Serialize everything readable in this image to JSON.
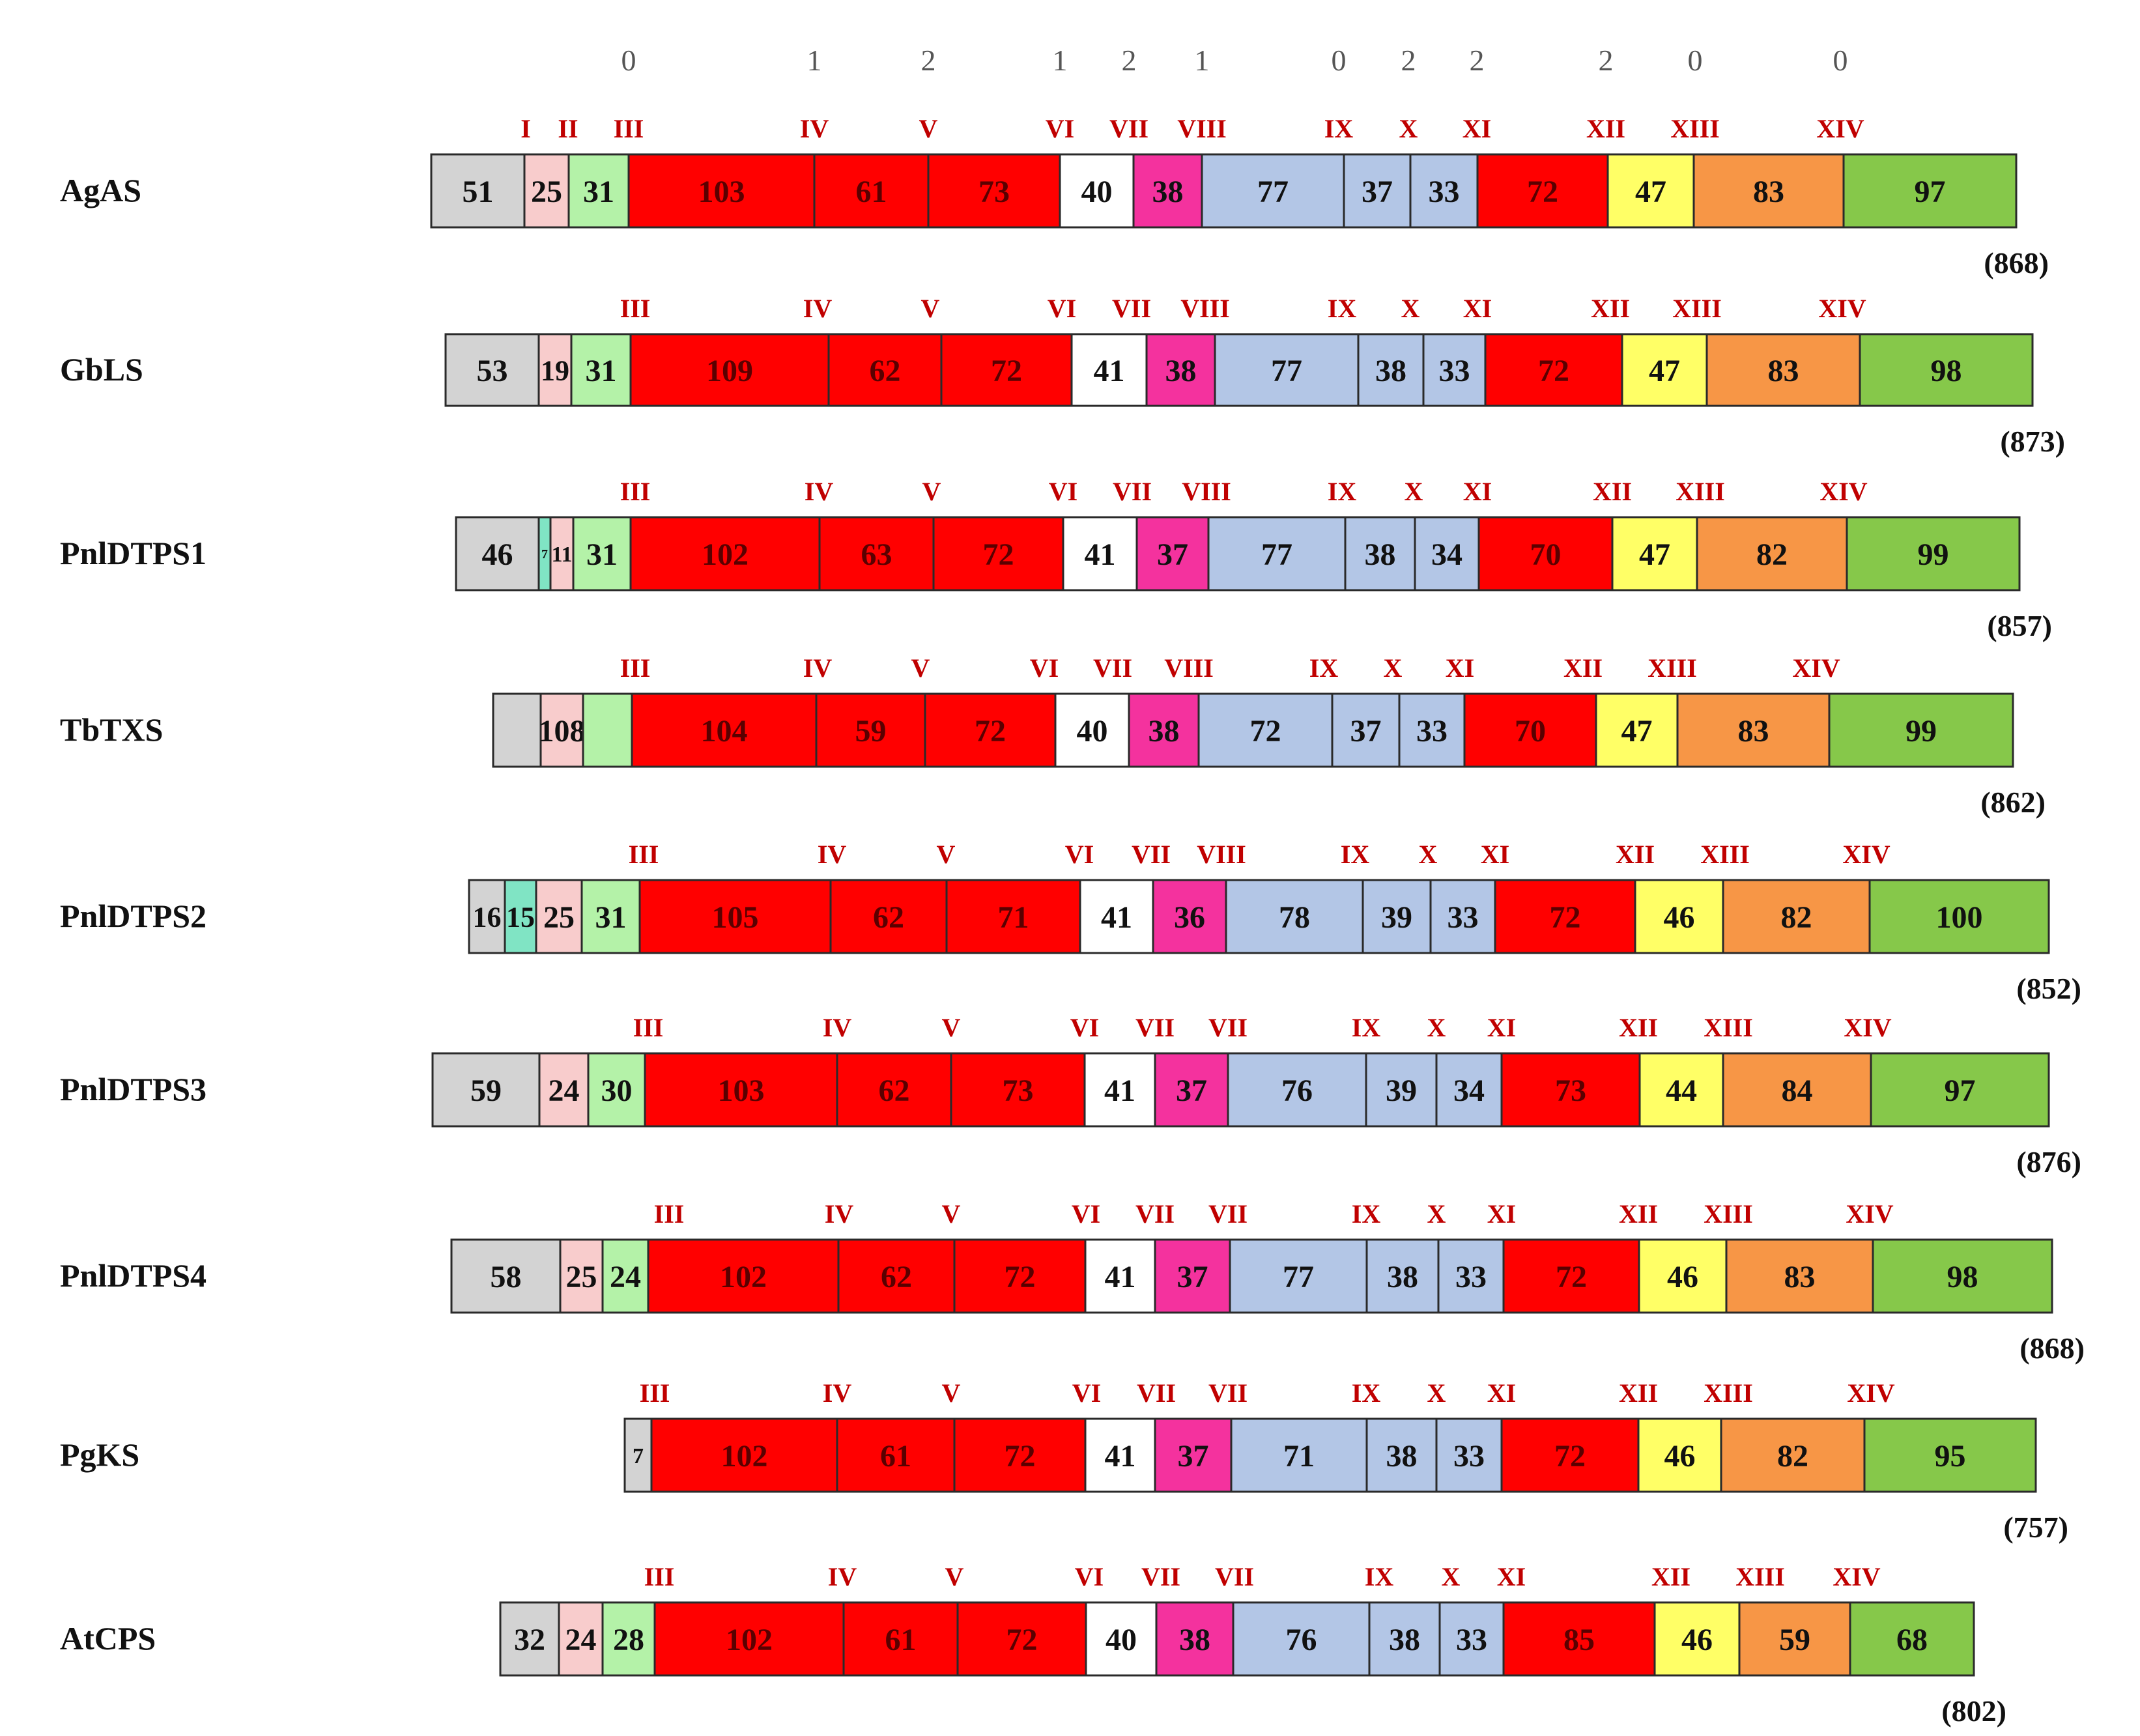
{
  "phase_numbers": [
    "0",
    "1",
    "2",
    "1",
    "2",
    "1",
    "0",
    "2",
    "2",
    "2",
    "0",
    "0"
  ],
  "colors": {
    "grey": "#d3d3d3",
    "pink": "#f8cccc",
    "lightgreen": "#b4f2a8",
    "teal": "#80e4c4",
    "red": "#ff0000",
    "white": "#ffffff",
    "magenta": "#f4329e",
    "blue": "#b3c6e6",
    "yellow": "#ffff66",
    "orange": "#f79646",
    "green": "#86c84a",
    "roman": "#c00000",
    "text": "#111111",
    "phase": "#555555"
  },
  "proteins": [
    {
      "name": "AgAS",
      "total": "(868)",
      "labels": [
        "I",
        "II",
        "III",
        "IV",
        "V",
        "VI",
        "VII",
        "VIII",
        "IX",
        "X",
        "XI",
        "XII",
        "XIII",
        "XIV"
      ],
      "segments": [
        {
          "v": "51",
          "c": "grey"
        },
        {
          "v": "25",
          "c": "pink"
        },
        {
          "v": "31",
          "c": "lightgreen"
        },
        {
          "v": "103",
          "c": "red"
        },
        {
          "v": "61",
          "c": "red"
        },
        {
          "v": "73",
          "c": "red"
        },
        {
          "v": "40",
          "c": "white"
        },
        {
          "v": "38",
          "c": "magenta"
        },
        {
          "v": "77",
          "c": "blue"
        },
        {
          "v": "37",
          "c": "blue"
        },
        {
          "v": "33",
          "c": "blue"
        },
        {
          "v": "72",
          "c": "red"
        },
        {
          "v": "47",
          "c": "yellow"
        },
        {
          "v": "83",
          "c": "orange"
        },
        {
          "v": "97",
          "c": "green"
        }
      ]
    },
    {
      "name": "GbLS",
      "total": "(873)",
      "labels": [
        "III",
        "IV",
        "V",
        "VI",
        "VII",
        "VIII",
        "IX",
        "X",
        "XI",
        "XII",
        "XIII",
        "XIV"
      ],
      "segments": [
        {
          "v": "53",
          "c": "grey"
        },
        {
          "v": "19",
          "c": "pink"
        },
        {
          "v": "31",
          "c": "lightgreen"
        },
        {
          "v": "109",
          "c": "red"
        },
        {
          "v": "62",
          "c": "red"
        },
        {
          "v": "72",
          "c": "red"
        },
        {
          "v": "41",
          "c": "white"
        },
        {
          "v": "38",
          "c": "magenta"
        },
        {
          "v": "77",
          "c": "blue"
        },
        {
          "v": "38",
          "c": "blue"
        },
        {
          "v": "33",
          "c": "blue"
        },
        {
          "v": "72",
          "c": "red"
        },
        {
          "v": "47",
          "c": "yellow"
        },
        {
          "v": "83",
          "c": "orange"
        },
        {
          "v": "98",
          "c": "green"
        }
      ]
    },
    {
      "name": "PnlDTPS1",
      "total": "(857)",
      "labels": [
        "III",
        "IV",
        "V",
        "VI",
        "VII",
        "VIII",
        "IX",
        "X",
        "XI",
        "XII",
        "XIII",
        "XIV"
      ],
      "segments": [
        {
          "v": "46",
          "c": "grey"
        },
        {
          "v": "7",
          "c": "teal"
        },
        {
          "v": "11",
          "c": "pink"
        },
        {
          "v": "31",
          "c": "lightgreen"
        },
        {
          "v": "102",
          "c": "red"
        },
        {
          "v": "63",
          "c": "red"
        },
        {
          "v": "72",
          "c": "red"
        },
        {
          "v": "41",
          "c": "white"
        },
        {
          "v": "37",
          "c": "magenta"
        },
        {
          "v": "77",
          "c": "blue"
        },
        {
          "v": "38",
          "c": "blue"
        },
        {
          "v": "34",
          "c": "blue"
        },
        {
          "v": "70",
          "c": "red"
        },
        {
          "v": "47",
          "c": "yellow"
        },
        {
          "v": "82",
          "c": "orange"
        },
        {
          "v": "99",
          "c": "green"
        }
      ]
    },
    {
      "name": "TbTXS",
      "total": "(862)",
      "labels": [
        "III",
        "IV",
        "V",
        "VI",
        "VII",
        "VIII",
        "IX",
        "X",
        "XI",
        "XII",
        "XIII",
        "XIV"
      ],
      "segments": [
        {
          "v": "",
          "c": "grey"
        },
        {
          "v": "108",
          "c": "pink"
        },
        {
          "v": "",
          "c": "lightgreen"
        },
        {
          "v": "104",
          "c": "red"
        },
        {
          "v": "59",
          "c": "red"
        },
        {
          "v": "72",
          "c": "red"
        },
        {
          "v": "40",
          "c": "white"
        },
        {
          "v": "38",
          "c": "magenta"
        },
        {
          "v": "72",
          "c": "blue"
        },
        {
          "v": "37",
          "c": "blue"
        },
        {
          "v": "33",
          "c": "blue"
        },
        {
          "v": "70",
          "c": "red"
        },
        {
          "v": "47",
          "c": "yellow"
        },
        {
          "v": "83",
          "c": "orange"
        },
        {
          "v": "99",
          "c": "green"
        }
      ]
    },
    {
      "name": "PnlDTPS2",
      "total": "(852)",
      "labels": [
        "III",
        "IV",
        "V",
        "VI",
        "VII",
        "VIII",
        "IX",
        "X",
        "XI",
        "XII",
        "XIII",
        "XIV"
      ],
      "segments": [
        {
          "v": "16",
          "c": "grey"
        },
        {
          "v": "15",
          "c": "teal"
        },
        {
          "v": "25",
          "c": "pink"
        },
        {
          "v": "31",
          "c": "lightgreen"
        },
        {
          "v": "105",
          "c": "red"
        },
        {
          "v": "62",
          "c": "red"
        },
        {
          "v": "71",
          "c": "red"
        },
        {
          "v": "41",
          "c": "white"
        },
        {
          "v": "36",
          "c": "magenta"
        },
        {
          "v": "78",
          "c": "blue"
        },
        {
          "v": "39",
          "c": "blue"
        },
        {
          "v": "33",
          "c": "blue"
        },
        {
          "v": "72",
          "c": "red"
        },
        {
          "v": "46",
          "c": "yellow"
        },
        {
          "v": "82",
          "c": "orange"
        },
        {
          "v": "100",
          "c": "green"
        }
      ]
    },
    {
      "name": "PnlDTPS3",
      "total": "(876)",
      "labels": [
        "III",
        "IV",
        "V",
        "VI",
        "VII",
        "VII",
        "IX",
        "X",
        "XI",
        "XII",
        "XIII",
        "XIV"
      ],
      "segments": [
        {
          "v": "59",
          "c": "grey"
        },
        {
          "v": "24",
          "c": "pink"
        },
        {
          "v": "30",
          "c": "lightgreen"
        },
        {
          "v": "103",
          "c": "red"
        },
        {
          "v": "62",
          "c": "red"
        },
        {
          "v": "73",
          "c": "red"
        },
        {
          "v": "41",
          "c": "white"
        },
        {
          "v": "37",
          "c": "magenta"
        },
        {
          "v": "76",
          "c": "blue"
        },
        {
          "v": "39",
          "c": "blue"
        },
        {
          "v": "34",
          "c": "blue"
        },
        {
          "v": "73",
          "c": "red"
        },
        {
          "v": "44",
          "c": "yellow"
        },
        {
          "v": "84",
          "c": "orange"
        },
        {
          "v": "97",
          "c": "green"
        }
      ]
    },
    {
      "name": "PnlDTPS4",
      "total": "(868)",
      "labels": [
        "III",
        "IV",
        "V",
        "VI",
        "VII",
        "VII",
        "IX",
        "X",
        "XI",
        "XII",
        "XIII",
        "XIV"
      ],
      "segments": [
        {
          "v": "58",
          "c": "grey"
        },
        {
          "v": "25",
          "c": "pink"
        },
        {
          "v": "24",
          "c": "lightgreen"
        },
        {
          "v": "102",
          "c": "red"
        },
        {
          "v": "62",
          "c": "red"
        },
        {
          "v": "72",
          "c": "red"
        },
        {
          "v": "41",
          "c": "white"
        },
        {
          "v": "37",
          "c": "magenta"
        },
        {
          "v": "77",
          "c": "blue"
        },
        {
          "v": "38",
          "c": "blue"
        },
        {
          "v": "33",
          "c": "blue"
        },
        {
          "v": "72",
          "c": "red"
        },
        {
          "v": "46",
          "c": "yellow"
        },
        {
          "v": "83",
          "c": "orange"
        },
        {
          "v": "98",
          "c": "green"
        }
      ]
    },
    {
      "name": "PgKS",
      "total": "(757)",
      "labels": [
        "III",
        "IV",
        "V",
        "VI",
        "VII",
        "VII",
        "IX",
        "X",
        "XI",
        "XII",
        "XIII",
        "XIV"
      ],
      "segments": [
        {
          "v": "7",
          "c": "grey"
        },
        {
          "v": "102",
          "c": "red"
        },
        {
          "v": "61",
          "c": "red"
        },
        {
          "v": "72",
          "c": "red"
        },
        {
          "v": "41",
          "c": "white"
        },
        {
          "v": "37",
          "c": "magenta"
        },
        {
          "v": "71",
          "c": "blue"
        },
        {
          "v": "38",
          "c": "blue"
        },
        {
          "v": "33",
          "c": "blue"
        },
        {
          "v": "72",
          "c": "red"
        },
        {
          "v": "46",
          "c": "yellow"
        },
        {
          "v": "82",
          "c": "orange"
        },
        {
          "v": "95",
          "c": "green"
        }
      ]
    },
    {
      "name": "AtCPS",
      "total": "(802)",
      "labels": [
        "III",
        "IV",
        "V",
        "VI",
        "VII",
        "VII",
        "IX",
        "X",
        "XI",
        "XII",
        "XIII",
        "XIV"
      ],
      "segments": [
        {
          "v": "32",
          "c": "grey"
        },
        {
          "v": "24",
          "c": "pink"
        },
        {
          "v": "28",
          "c": "lightgreen"
        },
        {
          "v": "102",
          "c": "red"
        },
        {
          "v": "61",
          "c": "red"
        },
        {
          "v": "72",
          "c": "red"
        },
        {
          "v": "40",
          "c": "white"
        },
        {
          "v": "38",
          "c": "magenta"
        },
        {
          "v": "76",
          "c": "blue"
        },
        {
          "v": "38",
          "c": "blue"
        },
        {
          "v": "33",
          "c": "blue"
        },
        {
          "v": "85",
          "c": "red"
        },
        {
          "v": "46",
          "c": "yellow"
        },
        {
          "v": "59",
          "c": "orange"
        },
        {
          "v": "68",
          "c": "green"
        }
      ]
    }
  ]
}
